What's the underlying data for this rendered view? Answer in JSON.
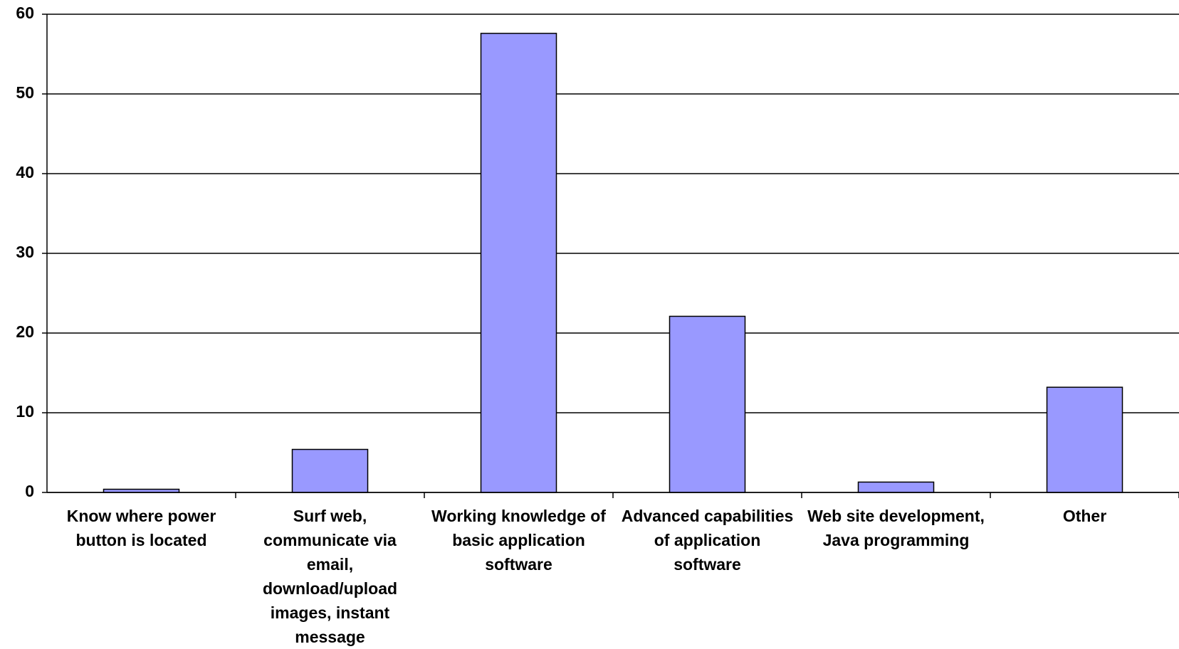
{
  "chart_data": {
    "type": "bar",
    "categories": [
      "Know where power button is located",
      "Surf web, communicate via email, download/upload images, instant message",
      "Working knowledge of basic application software",
      "Advanced capabilities of application software",
      "Web site development, Java programming",
      "Other"
    ],
    "values": [
      0.4,
      5.4,
      57.6,
      22.1,
      1.3,
      13.2
    ],
    "color": "#9999ff",
    "ylim": [
      0,
      60
    ],
    "yticks": [
      0,
      10,
      20,
      30,
      40,
      50,
      60
    ],
    "grid": true
  }
}
